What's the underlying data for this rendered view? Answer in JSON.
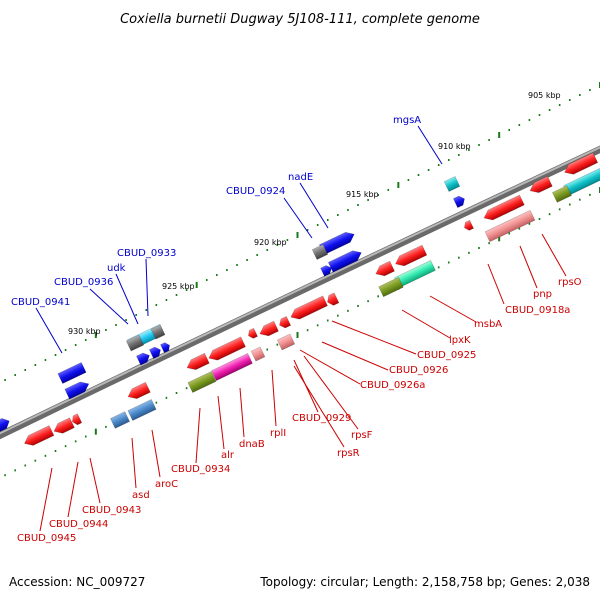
{
  "title": "Coxiella burnetii Dugway 5J108-111, complete genome",
  "footer": {
    "accession": "Accession: NC_009727",
    "summary": "Topology: circular; Length: 2,158,758 bp; Genes: 2,038"
  },
  "colors": {
    "forward_label": "#0000cc",
    "reverse_label": "#cc0000",
    "backbone": "#808080",
    "tick": "#1a7a1a"
  },
  "scale_ticks": [
    "905 kbp",
    "910 kbp",
    "915 kbp",
    "920 kbp",
    "925 kbp",
    "930 kbp"
  ],
  "forward_gene_labels": [
    "mgsA",
    "nadE",
    "CBUD_0924",
    "CBUD_0933",
    "udk",
    "CBUD_0936",
    "CBUD_0941"
  ],
  "reverse_gene_labels": [
    "rpsO",
    "pnp",
    "CBUD_0918a",
    "msbA",
    "lpxK",
    "CBUD_0925",
    "CBUD_0926",
    "CBUD_0926a",
    "CBUD_0929",
    "rpsF",
    "rpsR",
    "rplI",
    "dnaB",
    "alr",
    "CBUD_0934",
    "aroC",
    "asd",
    "CBUD_0943",
    "CBUD_0944",
    "CBUD_0945"
  ]
}
